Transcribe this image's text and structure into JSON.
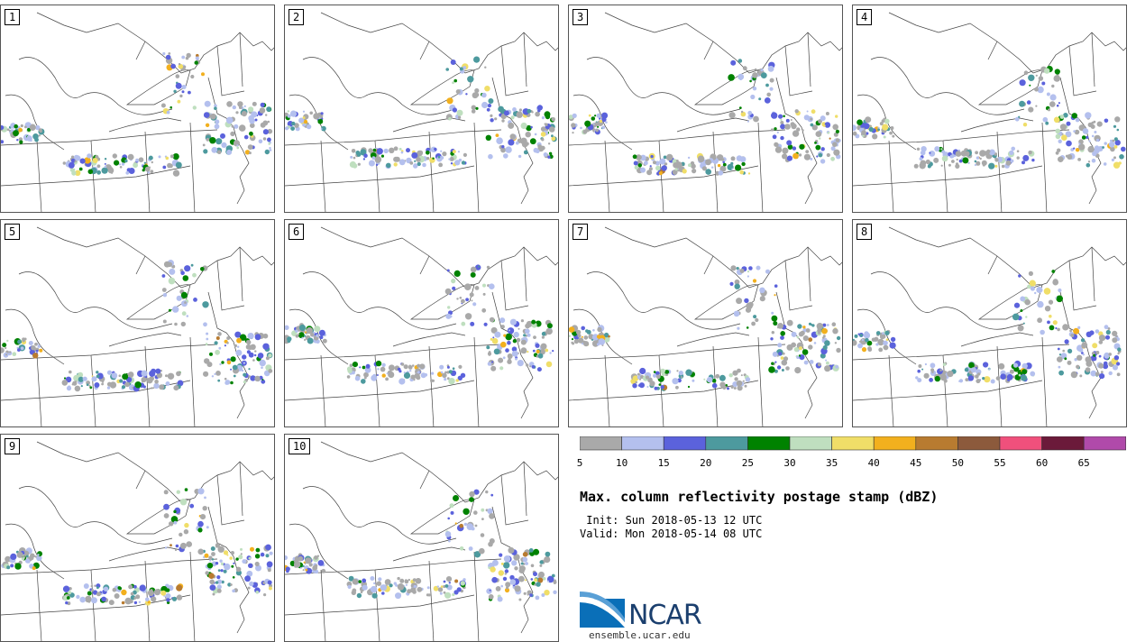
{
  "panels": [
    {
      "label": "1"
    },
    {
      "label": "2"
    },
    {
      "label": "3"
    },
    {
      "label": "4"
    },
    {
      "label": "5"
    },
    {
      "label": "6"
    },
    {
      "label": "7"
    },
    {
      "label": "8"
    },
    {
      "label": "9"
    },
    {
      "label": "10"
    }
  ],
  "colorbar": {
    "colors": [
      "#a9a9a9",
      "#b4c0ee",
      "#5b62dc",
      "#4d9a9e",
      "#008200",
      "#bfdfbf",
      "#f0de68",
      "#f2b01e",
      "#b87b30",
      "#8c5a3c",
      "#f0507c",
      "#6b1a3a",
      "#b04aaa"
    ],
    "ticks": [
      "5",
      "10",
      "15",
      "20",
      "25",
      "30",
      "35",
      "40",
      "45",
      "50",
      "55",
      "60",
      "65"
    ]
  },
  "title": "Max. column reflectivity postage stamp (dBZ)",
  "init_line": " Init: Sun 2018-05-13 12 UTC",
  "valid_line": "Valid: Mon 2018-05-14 08 UTC",
  "logo": {
    "text": "NCAR",
    "url": "ensemble.ucar.edu"
  }
}
